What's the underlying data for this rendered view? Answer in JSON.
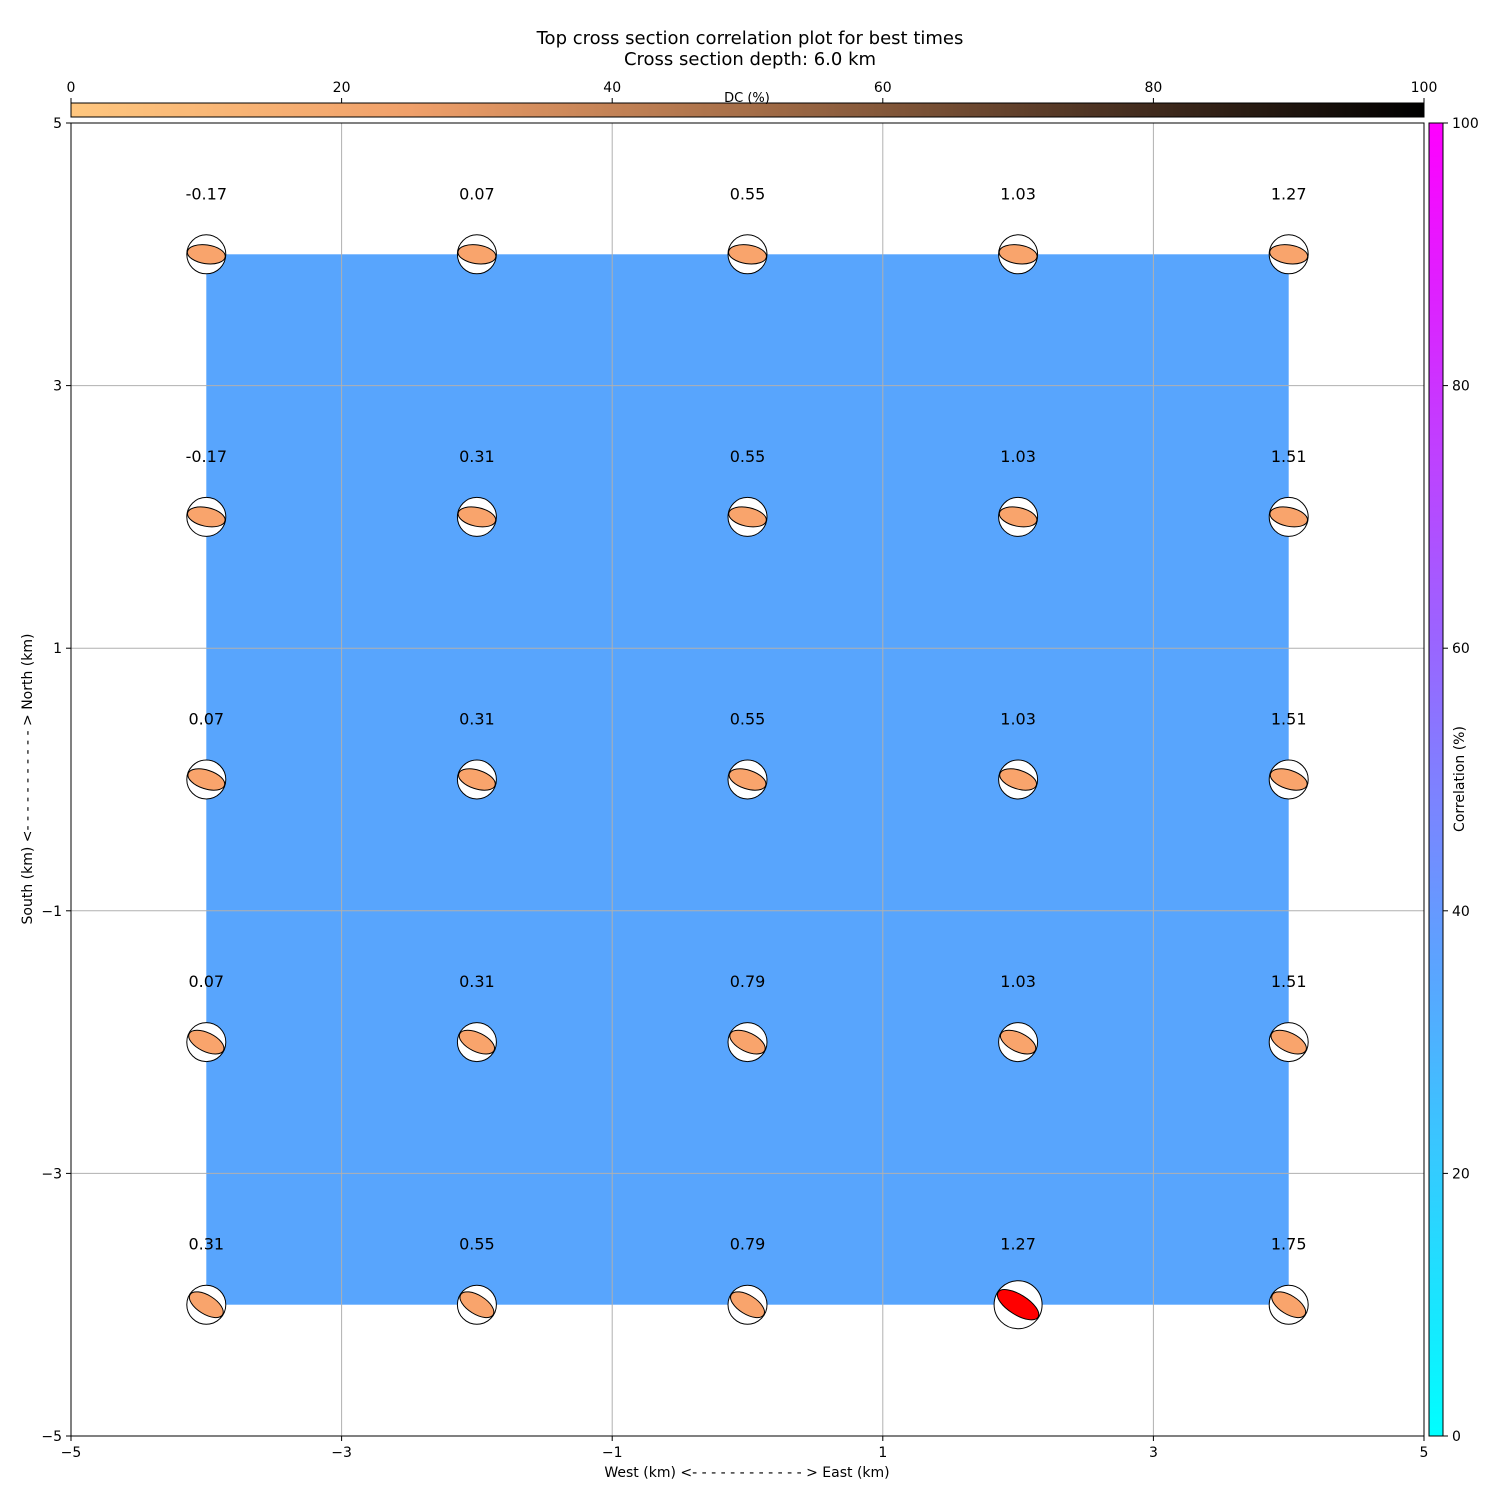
{
  "chart_data": {
    "type": "heatmap",
    "title": "Top cross section correlation plot for best times",
    "subtitle": "Cross section depth: 6.0 km",
    "xlabel": "West (km) <- - - - - - - - - - - - > East (km)",
    "ylabel": "South (km) <- - - - - - - - - - - > North (km)",
    "xlim": [
      -5,
      5
    ],
    "ylim": [
      -5,
      5
    ],
    "xticks": [
      -5,
      -3,
      -1,
      1,
      3,
      5
    ],
    "yticks": [
      -5,
      -3,
      -1,
      1,
      3,
      5
    ],
    "xtick_labels": [
      "−5",
      "−3",
      "−1",
      "1",
      "3",
      "5"
    ],
    "ytick_labels": [
      "−5",
      "−3",
      "−1",
      "1",
      "3",
      "5"
    ],
    "grid": true,
    "x": [
      -4,
      -2,
      0,
      2,
      4
    ],
    "y": [
      4,
      2,
      0,
      -2,
      -4
    ],
    "values": [
      [
        "-0.17",
        "0.07",
        "0.55",
        "1.03",
        "1.27"
      ],
      [
        "-0.17",
        "0.31",
        "0.55",
        "1.03",
        "1.51"
      ],
      [
        "0.07",
        "0.31",
        "0.55",
        "1.03",
        "1.51"
      ],
      [
        "0.07",
        "0.31",
        "0.79",
        "1.03",
        "1.51"
      ],
      [
        "0.31",
        "0.55",
        "0.79",
        "1.27",
        "1.75"
      ]
    ],
    "correlation_percent": 40,
    "fill_color": "#58a5fd",
    "best_point": {
      "x": 2,
      "y": -4
    },
    "best_color": "#ff0000",
    "mechanism_color": "#f9a46c",
    "colorbar_dc": {
      "label": "DC (%)",
      "range": [
        0,
        100
      ],
      "ticks": [
        "0",
        "20",
        "40",
        "60",
        "80",
        "100"
      ],
      "colormap": "copper_r",
      "placement": "top"
    },
    "colorbar_correlation": {
      "label": "Correlation (%)",
      "range": [
        0,
        100
      ],
      "ticks": [
        "0",
        "20",
        "40",
        "60",
        "80",
        "100"
      ],
      "colormap": "cool",
      "placement": "right"
    }
  }
}
